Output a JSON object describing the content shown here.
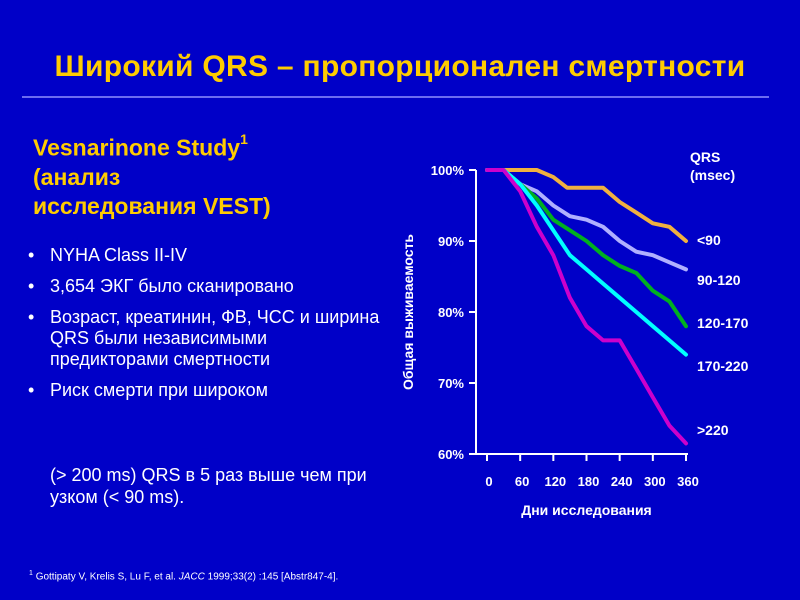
{
  "slide": {
    "title": "Широкий QRS – пропорционален смертности",
    "subtitle_line1": "Vesnarinone Study",
    "subtitle_sup": "1",
    "subtitle_line2": "(анализ",
    "subtitle_line3": "исследования VEST)",
    "bullets": [
      "NYHA Class II-IV",
      "3,654 ЭКГ было сканировано",
      "Возраст, креатинин, ФВ, ЧСС и ширина QRS были независимыми предикторами смертности",
      "Риск смерти при широком"
    ],
    "bullet_continuation": "(> 200 ms) QRS в 5 раз выше чем при узком (< 90 ms).",
    "bullet_symbol": "•",
    "footnote_sup": "1",
    "footnote_text": "Gottipaty V, Krelis S, Lu F, et al.",
    "footnote_journal": "JACC",
    "footnote_rest": "1999;33(2) :145 [Abstr847-4]."
  },
  "colors": {
    "background": "#0000c8",
    "title": "#ffcc00",
    "text": "#ffffff"
  },
  "chart_data": {
    "type": "line",
    "title": "",
    "xlabel": "Дни исследования",
    "ylabel": "Общая выживаемость",
    "legend_title_line1": "QRS",
    "legend_title_line2": "(msec)",
    "x_ticks": [
      0,
      60,
      120,
      180,
      240,
      300,
      360
    ],
    "y_ticks": [
      60,
      70,
      80,
      90,
      100
    ],
    "y_tick_labels": [
      "60%",
      "70%",
      "80%",
      "90%",
      "100%"
    ],
    "xlim": [
      0,
      360
    ],
    "ylim": [
      60,
      100
    ],
    "grid": false,
    "series": [
      {
        "name": "<90",
        "color": "#f0b040",
        "points": [
          [
            0,
            100
          ],
          [
            60,
            100
          ],
          [
            90,
            100
          ],
          [
            120,
            99
          ],
          [
            145,
            97.5
          ],
          [
            180,
            97.5
          ],
          [
            210,
            97.5
          ],
          [
            240,
            95.5
          ],
          [
            270,
            94
          ],
          [
            300,
            92.5
          ],
          [
            330,
            92
          ],
          [
            360,
            90
          ]
        ]
      },
      {
        "name": "90-120",
        "color": "#b0b0ff",
        "points": [
          [
            0,
            100
          ],
          [
            30,
            100
          ],
          [
            60,
            98
          ],
          [
            90,
            97
          ],
          [
            120,
            95
          ],
          [
            150,
            93.5
          ],
          [
            180,
            93
          ],
          [
            210,
            92
          ],
          [
            240,
            90
          ],
          [
            270,
            88.5
          ],
          [
            300,
            88
          ],
          [
            330,
            87
          ],
          [
            360,
            86
          ]
        ]
      },
      {
        "name": "120-170",
        "color": "#00b020",
        "points": [
          [
            0,
            100
          ],
          [
            30,
            100
          ],
          [
            60,
            98
          ],
          [
            90,
            96
          ],
          [
            120,
            93
          ],
          [
            150,
            91.5
          ],
          [
            180,
            90
          ],
          [
            210,
            88
          ],
          [
            240,
            86.5
          ],
          [
            270,
            85.5
          ],
          [
            300,
            83
          ],
          [
            330,
            81.5
          ],
          [
            360,
            78
          ]
        ]
      },
      {
        "name": "170-220",
        "color": "#00ffff",
        "points": [
          [
            0,
            100
          ],
          [
            30,
            100
          ],
          [
            60,
            98
          ],
          [
            90,
            95
          ],
          [
            120,
            91.5
          ],
          [
            150,
            88
          ],
          [
            180,
            86
          ],
          [
            210,
            84
          ],
          [
            240,
            82
          ],
          [
            270,
            80
          ],
          [
            300,
            78
          ],
          [
            330,
            76
          ],
          [
            360,
            74
          ]
        ]
      },
      {
        "name": ">220",
        "color": "#cc00cc",
        "points": [
          [
            0,
            100
          ],
          [
            30,
            100
          ],
          [
            60,
            97
          ],
          [
            90,
            92
          ],
          [
            120,
            88
          ],
          [
            150,
            82
          ],
          [
            180,
            78
          ],
          [
            210,
            76
          ],
          [
            240,
            76
          ],
          [
            270,
            72
          ],
          [
            300,
            68
          ],
          [
            330,
            64
          ],
          [
            360,
            61.5
          ]
        ]
      }
    ]
  }
}
